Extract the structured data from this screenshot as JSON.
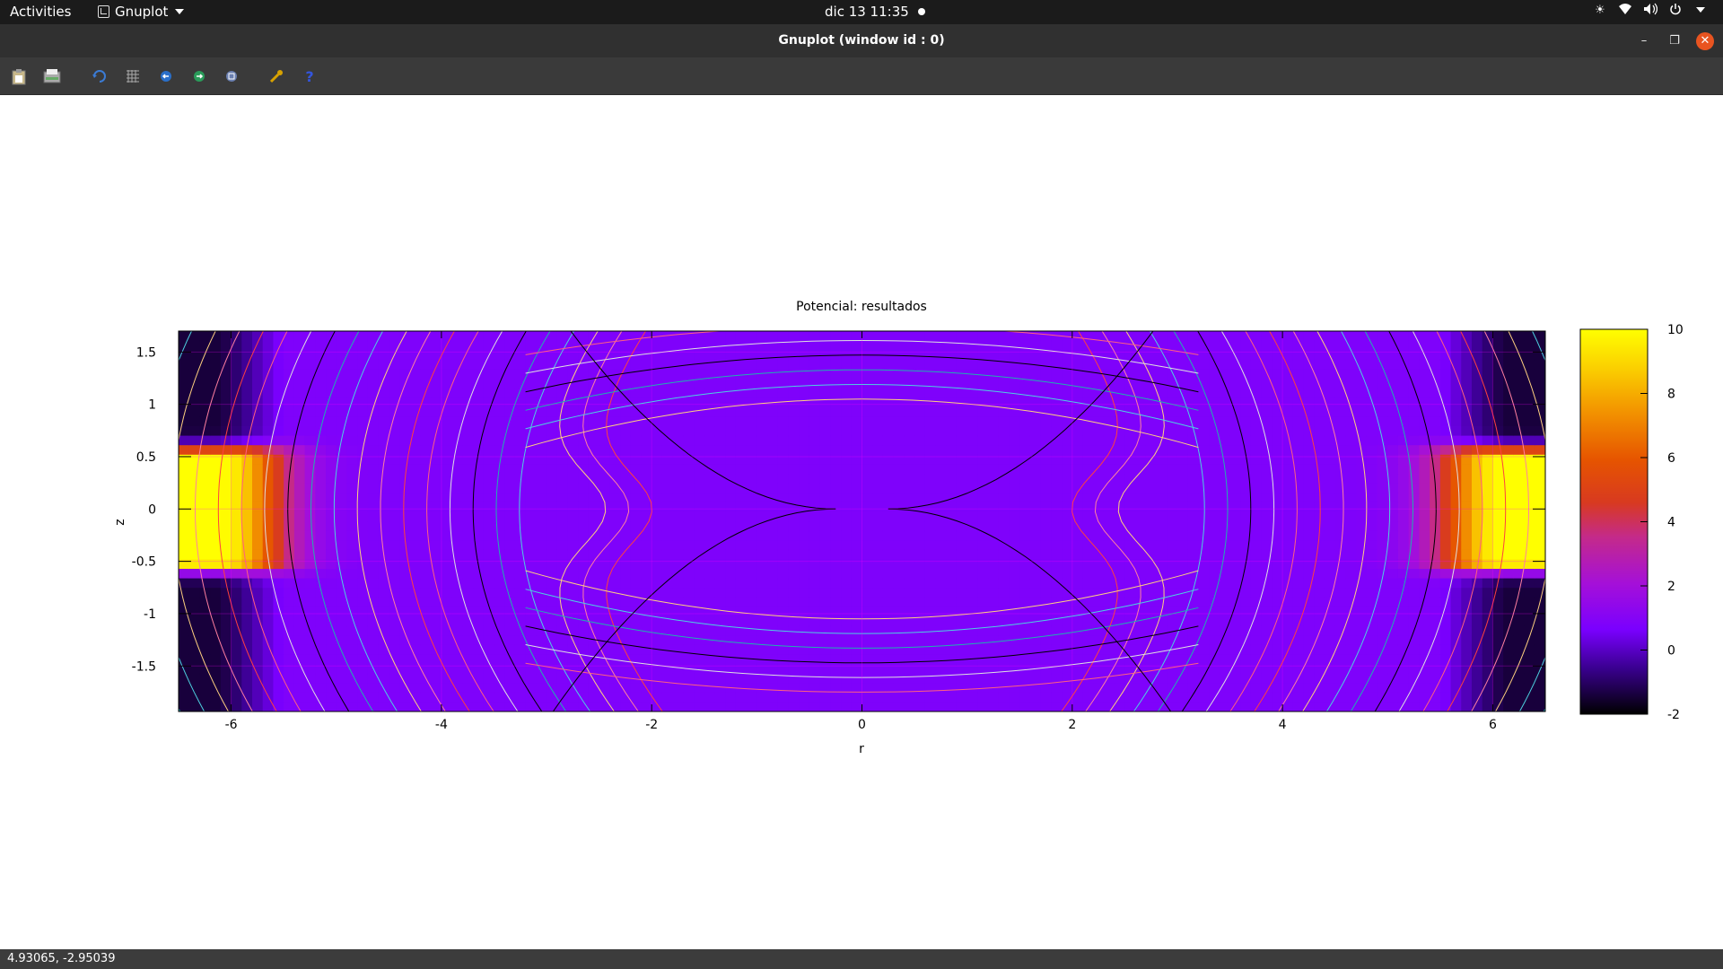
{
  "topbar": {
    "activities": "Activities",
    "app_name": "Gnuplot",
    "clock": "dic 13  11:35"
  },
  "window": {
    "title": "Gnuplot (window id : 0)"
  },
  "toolbar": {
    "icons": [
      "copy-clipboard-icon",
      "print-icon",
      "replot-icon",
      "grid-icon",
      "zoom-previous-icon",
      "zoom-next-icon",
      "autoscale-icon",
      "config-icon",
      "help-icon"
    ]
  },
  "statusbar": {
    "coordinates": "4.93065, -2.95039"
  },
  "chart_data": {
    "type": "heatmap",
    "title": "Potencial: resultados",
    "xlabel": "r",
    "ylabel": "z",
    "xlim": [
      -6.5,
      6.5
    ],
    "ylim": [
      -1.935,
      1.7
    ],
    "xticks": [
      "-6",
      "-4",
      "-2",
      "0",
      "2",
      "4",
      "6"
    ],
    "yticks": [
      "1.5",
      "1",
      "0.5",
      "0",
      "-0.5",
      "-1",
      "-1.5"
    ],
    "colorbar": {
      "range": [
        -2,
        10
      ],
      "ticks": [
        "10",
        "8",
        "6",
        "4",
        "2",
        "0",
        "-2"
      ],
      "palette": [
        "#000000",
        "#8000ff",
        "#cc2a8a",
        "#e34800",
        "#f4a000",
        "#ffff00"
      ]
    },
    "grid": true,
    "contours": true,
    "hot_regions": [
      {
        "r": [
          -6.5,
          -5.7
        ],
        "z": [
          -0.5,
          0.5
        ],
        "value": 10
      },
      {
        "r": [
          5.7,
          6.5
        ],
        "z": [
          -0.5,
          0.5
        ],
        "value": 10
      }
    ],
    "background_value": 0.8
  }
}
